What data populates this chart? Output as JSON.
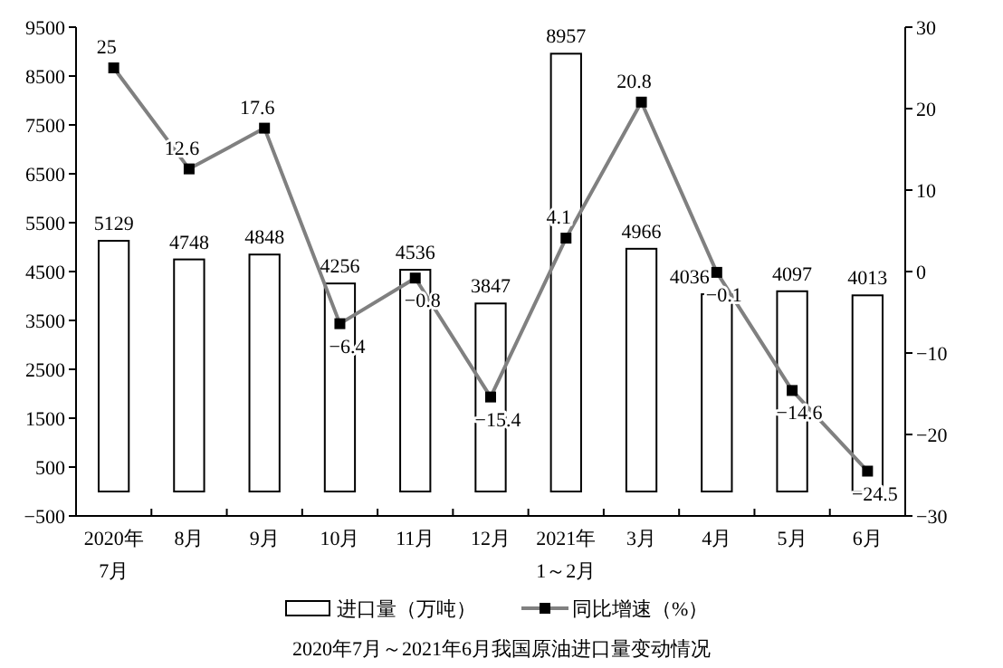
{
  "chart_data": {
    "type": "bar",
    "title": "2020年7月～2021年6月我国原油进口量变动情况",
    "categories": [
      "2020年\n7月",
      "8月",
      "9月",
      "10月",
      "11月",
      "12月",
      "2021年\n1～2月",
      "3月",
      "4月",
      "5月",
      "6月"
    ],
    "series": [
      {
        "name": "进口量（万吨）",
        "color": "#ffffff",
        "values": [
          5129,
          4748,
          4848,
          4256,
          4536,
          3847,
          8957,
          4966,
          4036,
          4097,
          4013
        ],
        "value_labels": [
          "5129",
          "4748",
          "4848",
          "4256",
          "4536",
          "3847",
          "8957",
          "4966",
          "4036",
          "4097",
          "4013"
        ]
      },
      {
        "name": "同比增速（%）",
        "type": "line",
        "axis": "y2",
        "color": "#808080",
        "values": [
          25,
          12.6,
          17.6,
          -6.4,
          -0.8,
          -15.4,
          4.1,
          20.8,
          -0.1,
          -14.6,
          -24.5
        ],
        "value_labels": [
          "25",
          "12.6",
          "17.6",
          "−6.4",
          "−0.8",
          "−15.4",
          "4.1",
          "20.8",
          "−0.1",
          "−14.6",
          "−24.5"
        ]
      }
    ],
    "ylim": [
      -500,
      9500
    ],
    "yticks": [
      {
        "value": -500,
        "label": "−500"
      },
      500,
      1500,
      2500,
      3500,
      4500,
      5500,
      6500,
      7500,
      8500,
      9500
    ],
    "y2lim": [
      -30,
      30
    ],
    "y2ticks": [
      {
        "value": -30,
        "label": "−30"
      },
      {
        "value": -20,
        "label": "−20"
      },
      {
        "value": -10,
        "label": "−10"
      },
      0,
      10,
      20,
      30
    ],
    "marker": "square",
    "legend": "bottom",
    "grid": false
  }
}
